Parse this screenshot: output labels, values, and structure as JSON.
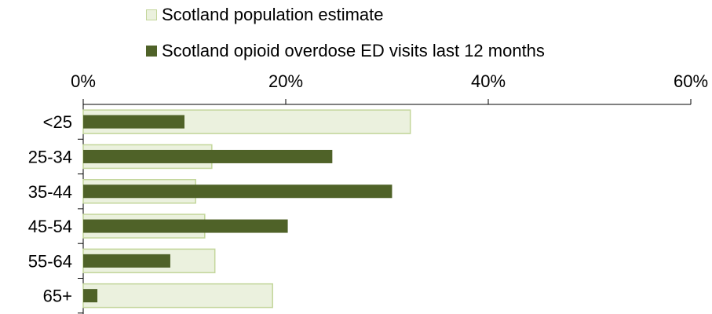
{
  "colors": {
    "population_fill": "#ebf1de",
    "population_stroke": "#c3d69b",
    "ed_visits": "#4f6228",
    "axis": "#000000",
    "gridline": "#bfbfbf"
  },
  "chart_data": {
    "type": "bar",
    "orientation": "horizontal",
    "title": "",
    "xlabel": "",
    "ylabel": "",
    "xlim": [
      0,
      60
    ],
    "x_ticks": [
      "0%",
      "20%",
      "40%",
      "60%"
    ],
    "x_tick_values": [
      0,
      20,
      40,
      60
    ],
    "categories": [
      "<25",
      "25-34",
      "35-44",
      "45-54",
      "55-64",
      "65+"
    ],
    "legend_position": "top",
    "grid": false,
    "series": [
      {
        "name": "Scotland population estimate",
        "values": [
          32.3,
          12.7,
          11.1,
          12.0,
          13.0,
          18.7
        ]
      },
      {
        "name": "Scotland opioid overdose ED visits last 12 months",
        "values": [
          10.0,
          24.6,
          30.5,
          20.2,
          8.6,
          1.4
        ]
      }
    ]
  }
}
